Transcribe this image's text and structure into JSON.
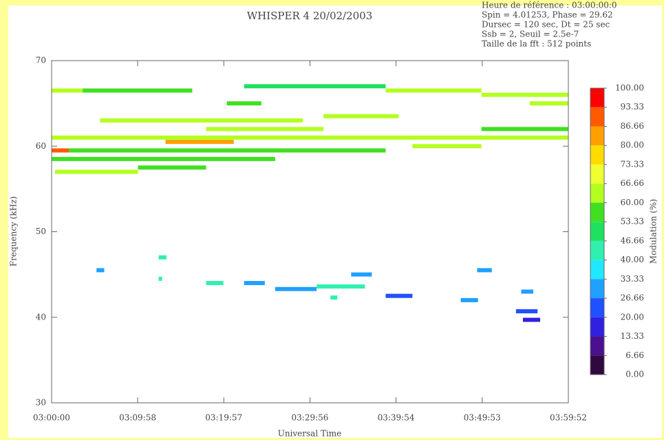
{
  "chart_data": {
    "type": "spectrogram",
    "title": "WHISPER 4  20/02/2003",
    "info": [
      "Heure de référence : 03:00:00:0",
      "Spin = 4.01253, Phase = 29.62",
      "Dursec = 120 sec, Dt = 25 sec",
      "Ssb = 2, Seuil = 2.5e-7",
      "Taille de la fft : 512 points"
    ],
    "xlabel": "Universal Time",
    "ylabel": "Frequency (kHz)",
    "colorbar_label": "Modulation (%)",
    "xlim": [
      0,
      59.867
    ],
    "xticks": [
      {
        "value": 0,
        "label": "03:00:00"
      },
      {
        "value": 9.967,
        "label": "03:09:58"
      },
      {
        "value": 19.95,
        "label": "03:19:57"
      },
      {
        "value": 29.933,
        "label": "03:29:56"
      },
      {
        "value": 39.9,
        "label": "03:39:54"
      },
      {
        "value": 49.883,
        "label": "03:49:53"
      },
      {
        "value": 59.867,
        "label": "03:59:52"
      }
    ],
    "ylim": [
      30,
      70
    ],
    "yticks": [
      30,
      40,
      50,
      60,
      70
    ],
    "clim": [
      0,
      100
    ],
    "cticks": [
      {
        "value": 100,
        "label": "100.00"
      },
      {
        "value": 93.33,
        "label": "93.33"
      },
      {
        "value": 86.66,
        "label": "86.66"
      },
      {
        "value": 80,
        "label": "80.00"
      },
      {
        "value": 73.33,
        "label": "73.33"
      },
      {
        "value": 66.66,
        "label": "66.66"
      },
      {
        "value": 60,
        "label": "60.00"
      },
      {
        "value": 53.33,
        "label": "53.33"
      },
      {
        "value": 46.66,
        "label": "46.66"
      },
      {
        "value": 40,
        "label": "40.00"
      },
      {
        "value": 33.33,
        "label": "33.33"
      },
      {
        "value": 26.66,
        "label": "26.66"
      },
      {
        "value": 20,
        "label": "20.00"
      },
      {
        "value": 13.33,
        "label": "13.33"
      },
      {
        "value": 6.66,
        "label": "6.66"
      },
      {
        "value": 0,
        "label": "0.00"
      }
    ],
    "colors": [
      "#ff0000",
      "#ff5a00",
      "#ffa000",
      "#ffdc00",
      "#f0ff30",
      "#b4ff20",
      "#40e020",
      "#20e060",
      "#30f0b0",
      "#20e8ff",
      "#20a0ff",
      "#2050ff",
      "#3020e0",
      "#4a1090",
      "#300840"
    ],
    "cells": [
      {
        "start": 0,
        "end": 3.6,
        "freq": 66.5,
        "value": 60
      },
      {
        "start": 3.6,
        "end": 16.3,
        "freq": 66.5,
        "value": 56
      },
      {
        "start": 22.3,
        "end": 38.7,
        "freq": 67,
        "value": 50
      },
      {
        "start": 38.7,
        "end": 49.8,
        "freq": 66.5,
        "value": 60
      },
      {
        "start": 49.8,
        "end": 59.867,
        "freq": 66,
        "value": 62
      },
      {
        "start": 20.3,
        "end": 24.3,
        "freq": 65,
        "value": 58
      },
      {
        "start": 55.4,
        "end": 59.867,
        "freq": 65,
        "value": 64
      },
      {
        "start": 31.5,
        "end": 40.2,
        "freq": 63.5,
        "value": 60
      },
      {
        "start": 5.6,
        "end": 29.1,
        "freq": 63,
        "value": 65
      },
      {
        "start": 17.9,
        "end": 31.5,
        "freq": 62,
        "value": 62
      },
      {
        "start": 49.8,
        "end": 59.867,
        "freq": 62,
        "value": 58
      },
      {
        "start": 0,
        "end": 59.867,
        "freq": 61,
        "value": 62
      },
      {
        "start": 13.2,
        "end": 21.1,
        "freq": 60.5,
        "value": 85
      },
      {
        "start": 0,
        "end": 2,
        "freq": 59.5,
        "value": 90
      },
      {
        "start": 2,
        "end": 38.7,
        "freq": 59.5,
        "value": 58
      },
      {
        "start": 41.8,
        "end": 49.8,
        "freq": 60,
        "value": 62
      },
      {
        "start": 0,
        "end": 25.9,
        "freq": 58.5,
        "value": 55
      },
      {
        "start": 0.4,
        "end": 10,
        "freq": 57,
        "value": 60
      },
      {
        "start": 10,
        "end": 17.9,
        "freq": 57.5,
        "value": 56
      },
      {
        "start": 5.2,
        "end": 6.1,
        "freq": 45.5,
        "value": 33
      },
      {
        "start": 12.4,
        "end": 13.3,
        "freq": 47,
        "value": 40
      },
      {
        "start": 17.9,
        "end": 19.9,
        "freq": 44,
        "value": 42
      },
      {
        "start": 22.3,
        "end": 24.7,
        "freq": 44,
        "value": 28
      },
      {
        "start": 25.9,
        "end": 30.7,
        "freq": 43.3,
        "value": 30
      },
      {
        "start": 30.7,
        "end": 36.3,
        "freq": 43.6,
        "value": 42
      },
      {
        "start": 34.7,
        "end": 37.1,
        "freq": 45,
        "value": 30
      },
      {
        "start": 32.3,
        "end": 33.1,
        "freq": 42.3,
        "value": 45
      },
      {
        "start": 38.7,
        "end": 41.8,
        "freq": 42.5,
        "value": 26
      },
      {
        "start": 47.4,
        "end": 49.4,
        "freq": 42,
        "value": 28
      },
      {
        "start": 49.3,
        "end": 51,
        "freq": 45.5,
        "value": 30
      },
      {
        "start": 53.8,
        "end": 56.3,
        "freq": 40.7,
        "value": 26
      },
      {
        "start": 54.6,
        "end": 56.6,
        "freq": 39.7,
        "value": 18
      },
      {
        "start": 54.4,
        "end": 55.8,
        "freq": 43,
        "value": 30
      },
      {
        "start": 12.4,
        "end": 12.8,
        "freq": 44.5,
        "value": 45
      }
    ]
  }
}
